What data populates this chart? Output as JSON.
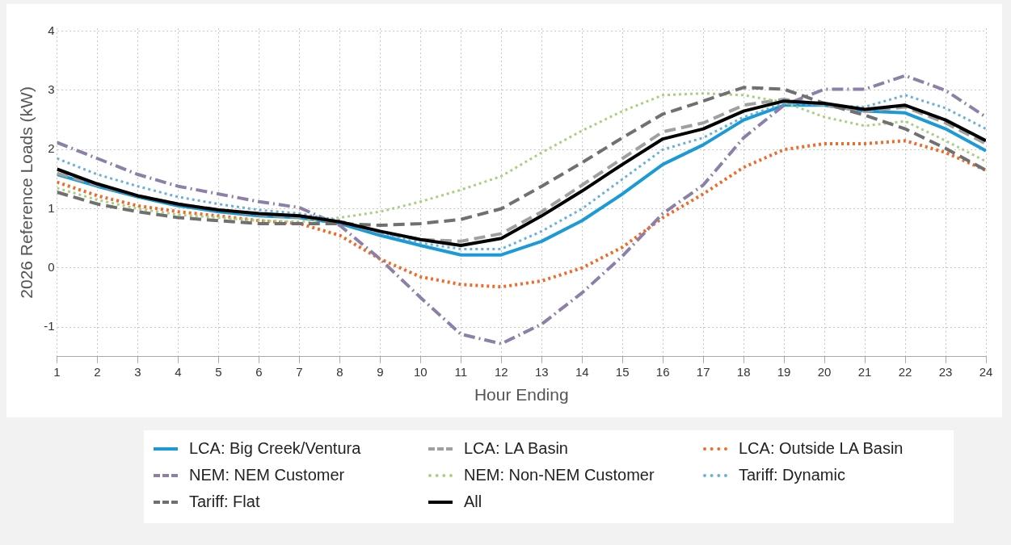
{
  "chart_data": {
    "type": "line",
    "xlabel": "Hour Ending",
    "ylabel": "2026 Reference Loads (kW)",
    "x": [
      1,
      2,
      3,
      4,
      5,
      6,
      7,
      8,
      9,
      10,
      11,
      12,
      13,
      14,
      15,
      16,
      17,
      18,
      19,
      20,
      21,
      22,
      23,
      24
    ],
    "xlim": [
      1,
      24
    ],
    "xticks": [
      1,
      2,
      3,
      4,
      5,
      6,
      7,
      8,
      9,
      10,
      11,
      12,
      13,
      14,
      15,
      16,
      17,
      18,
      19,
      20,
      21,
      22,
      23,
      24
    ],
    "ylim": [
      -1.5,
      4.05
    ],
    "yticks": [
      -1,
      0,
      1,
      2,
      3,
      4
    ],
    "grid": true,
    "legend": "bottom",
    "marker": "none",
    "series": [
      {
        "name": "LCA: Big Creek/Ventura",
        "color": "#1a9ad6",
        "line_style": "solid",
        "values": [
          1.58,
          1.38,
          1.2,
          1.05,
          0.95,
          0.88,
          0.85,
          0.75,
          0.55,
          0.38,
          0.22,
          0.22,
          0.45,
          0.8,
          1.25,
          1.75,
          2.08,
          2.5,
          2.75,
          2.75,
          2.65,
          2.62,
          2.35,
          1.98
        ]
      },
      {
        "name": "LCA: LA Basin",
        "color": "#a0a0a0",
        "line_style": "dashed",
        "values": [
          1.6,
          1.4,
          1.22,
          1.08,
          0.98,
          0.9,
          0.86,
          0.78,
          0.6,
          0.48,
          0.45,
          0.58,
          0.95,
          1.4,
          1.85,
          2.3,
          2.45,
          2.75,
          2.85,
          2.75,
          2.65,
          2.72,
          2.45,
          2.1
        ]
      },
      {
        "name": "LCA: Outside LA Basin",
        "color": "#f06a28",
        "line_style": "dotted",
        "values": [
          1.45,
          1.22,
          1.05,
          0.95,
          0.88,
          0.8,
          0.75,
          0.55,
          0.15,
          -0.15,
          -0.28,
          -0.32,
          -0.22,
          0.0,
          0.35,
          0.85,
          1.25,
          1.7,
          2.0,
          2.1,
          2.1,
          2.15,
          1.95,
          1.65
        ]
      },
      {
        "name": "NEM: NEM Customer",
        "color": "#8c80a8",
        "line_style": "dashdot",
        "values": [
          2.12,
          1.85,
          1.58,
          1.38,
          1.25,
          1.12,
          1.02,
          0.72,
          0.15,
          -0.5,
          -1.12,
          -1.28,
          -0.95,
          -0.42,
          0.2,
          0.92,
          1.4,
          2.2,
          2.75,
          3.02,
          3.02,
          3.25,
          3.0,
          2.55
        ]
      },
      {
        "name": "NEM: Non-NEM Customer",
        "color": "#a8d080",
        "line_style": "dotted",
        "values": [
          1.35,
          1.15,
          1.0,
          0.9,
          0.85,
          0.8,
          0.78,
          0.85,
          0.95,
          1.12,
          1.32,
          1.55,
          1.95,
          2.32,
          2.65,
          2.92,
          2.95,
          2.92,
          2.8,
          2.55,
          2.4,
          2.48,
          2.15,
          1.8
        ]
      },
      {
        "name": "Tariff: Dynamic",
        "color": "#6ab0d8",
        "line_style": "dotted",
        "values": [
          1.85,
          1.58,
          1.38,
          1.2,
          1.08,
          0.98,
          0.92,
          0.8,
          0.6,
          0.42,
          0.32,
          0.32,
          0.62,
          1.0,
          1.5,
          2.0,
          2.2,
          2.55,
          2.78,
          2.75,
          2.72,
          2.92,
          2.7,
          2.35
        ]
      },
      {
        "name": "Tariff: Flat",
        "color": "#707070",
        "line_style": "dashed",
        "values": [
          1.28,
          1.08,
          0.95,
          0.85,
          0.8,
          0.75,
          0.75,
          0.75,
          0.72,
          0.75,
          0.82,
          1.0,
          1.38,
          1.78,
          2.2,
          2.6,
          2.82,
          3.05,
          3.02,
          2.78,
          2.58,
          2.35,
          2.02,
          1.65
        ]
      },
      {
        "name": "All",
        "color": "#000000",
        "line_style": "solid",
        "values": [
          1.67,
          1.42,
          1.22,
          1.08,
          0.98,
          0.92,
          0.88,
          0.78,
          0.62,
          0.48,
          0.38,
          0.5,
          0.88,
          1.3,
          1.75,
          2.18,
          2.35,
          2.65,
          2.82,
          2.78,
          2.68,
          2.75,
          2.5,
          2.15
        ]
      }
    ]
  }
}
